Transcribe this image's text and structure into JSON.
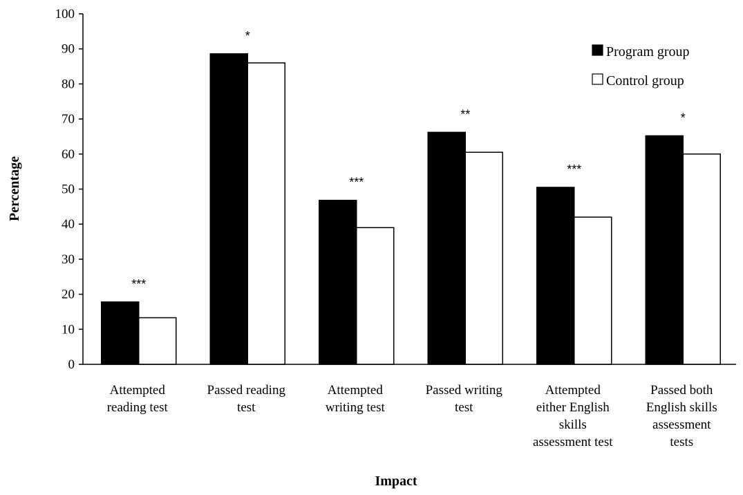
{
  "chart_data": {
    "type": "bar",
    "title": "",
    "xlabel": "Impact",
    "ylabel": "Percentage",
    "ylim": [
      0,
      100
    ],
    "yticks": [
      0,
      10,
      20,
      30,
      40,
      50,
      60,
      70,
      80,
      90,
      100
    ],
    "categories": [
      [
        "Attempted",
        "reading test"
      ],
      [
        "Passed reading",
        "test"
      ],
      [
        "Attempted",
        "writing test"
      ],
      [
        "Passed writing",
        "test"
      ],
      [
        "Attempted",
        "either English",
        "skills",
        "assessment test"
      ],
      [
        "Passed both",
        "English skills",
        "assessment",
        "tests"
      ]
    ],
    "series": [
      {
        "name": "Program group",
        "color": "#000000",
        "values": [
          17.8,
          88.6,
          46.8,
          66.2,
          50.5,
          65.2
        ]
      },
      {
        "name": "Control group",
        "color": "#ffffff",
        "values": [
          13.3,
          86.0,
          39.0,
          60.5,
          42.0,
          60.0
        ]
      }
    ],
    "significance": [
      "***",
      "*",
      "***",
      "**",
      "***",
      "*"
    ],
    "legend_position": "top-right",
    "grid": false
  }
}
